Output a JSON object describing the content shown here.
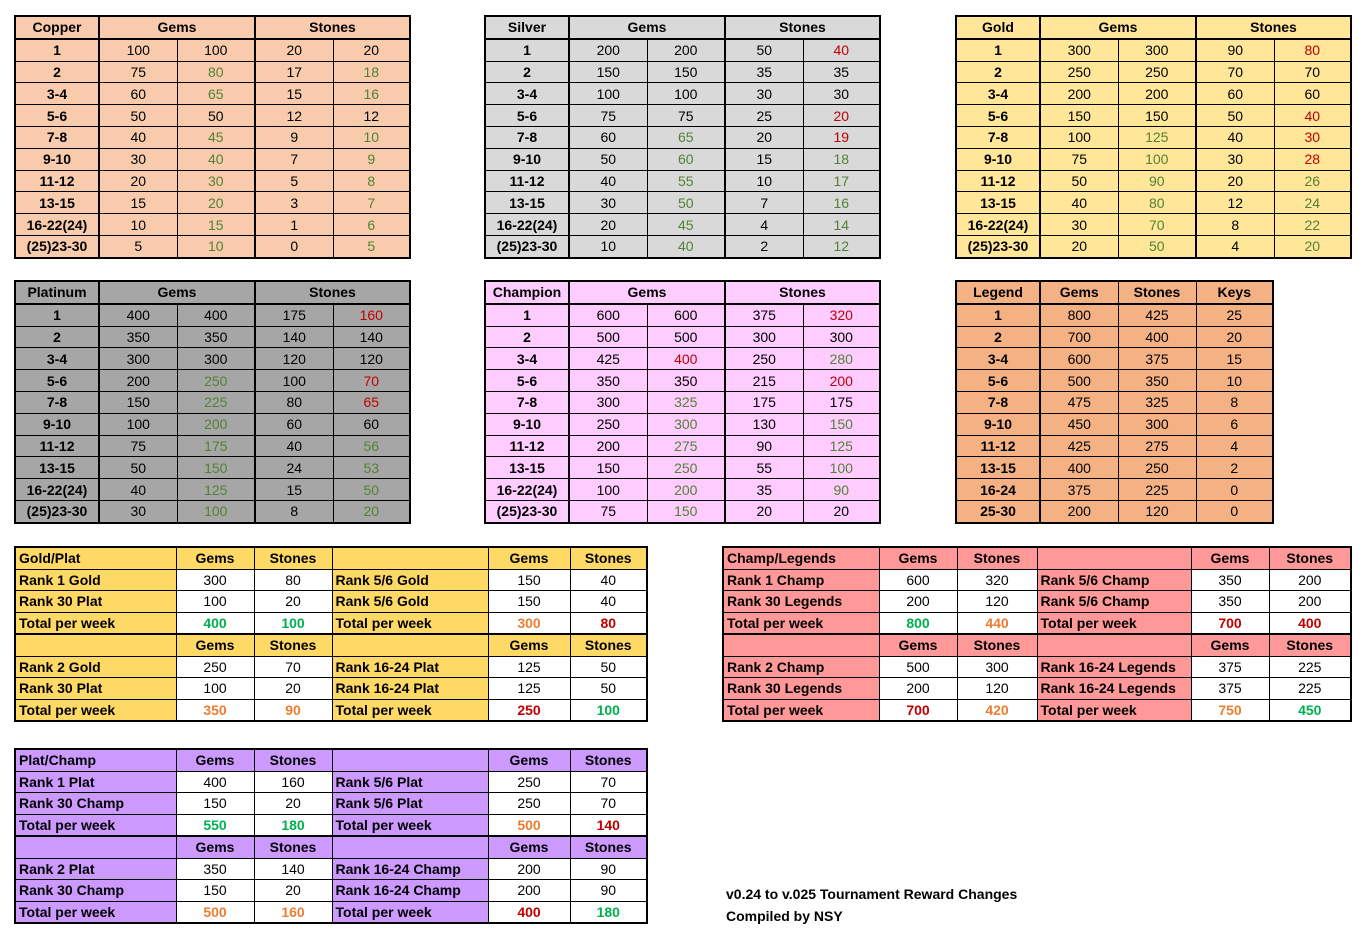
{
  "colors": {
    "copper": "#f8cbad",
    "silver": "#d9d9d9",
    "gold": "#ffe699",
    "platinum": "#a6a6a6",
    "champion": "#ffccff",
    "legend": "#f4b183",
    "gold_plat": "#ffd966",
    "champ_legends": "#ff9999",
    "plat_champ": "#cc99ff",
    "increase_text": "#538135",
    "decrease_text": "#c00000",
    "total_good": "#00b050",
    "total_mid": "#ed7d31",
    "total_bad": "#c00000"
  },
  "tiers": [
    {
      "title": "Copper",
      "gems_header": "Gems",
      "stones_header": "Stones",
      "rows": [
        {
          "rank": "1",
          "g_old": "100",
          "g_new": "100",
          "s_old": "20",
          "s_new": "20",
          "g_dir": "n",
          "s_dir": "n"
        },
        {
          "rank": "2",
          "g_old": "75",
          "g_new": "80",
          "s_old": "17",
          "s_new": "18",
          "g_dir": "g",
          "s_dir": "g"
        },
        {
          "rank": "3-4",
          "g_old": "60",
          "g_new": "65",
          "s_old": "15",
          "s_new": "16",
          "g_dir": "g",
          "s_dir": "g"
        },
        {
          "rank": "5-6",
          "g_old": "50",
          "g_new": "50",
          "s_old": "12",
          "s_new": "12",
          "g_dir": "n",
          "s_dir": "n"
        },
        {
          "rank": "7-8",
          "g_old": "40",
          "g_new": "45",
          "s_old": "9",
          "s_new": "10",
          "g_dir": "g",
          "s_dir": "g"
        },
        {
          "rank": "9-10",
          "g_old": "30",
          "g_new": "40",
          "s_old": "7",
          "s_new": "9",
          "g_dir": "g",
          "s_dir": "g"
        },
        {
          "rank": "11-12",
          "g_old": "20",
          "g_new": "30",
          "s_old": "5",
          "s_new": "8",
          "g_dir": "g",
          "s_dir": "g"
        },
        {
          "rank": "13-15",
          "g_old": "15",
          "g_new": "20",
          "s_old": "3",
          "s_new": "7",
          "g_dir": "g",
          "s_dir": "g"
        },
        {
          "rank": "16-22(24)",
          "g_old": "10",
          "g_new": "15",
          "s_old": "1",
          "s_new": "6",
          "g_dir": "g",
          "s_dir": "g"
        },
        {
          "rank": "(25)23-30",
          "g_old": "5",
          "g_new": "10",
          "s_old": "0",
          "s_new": "5",
          "g_dir": "g",
          "s_dir": "g"
        }
      ]
    },
    {
      "title": "Silver",
      "gems_header": "Gems",
      "stones_header": "Stones",
      "rows": [
        {
          "rank": "1",
          "g_old": "200",
          "g_new": "200",
          "s_old": "50",
          "s_new": "40",
          "g_dir": "n",
          "s_dir": "r"
        },
        {
          "rank": "2",
          "g_old": "150",
          "g_new": "150",
          "s_old": "35",
          "s_new": "35",
          "g_dir": "n",
          "s_dir": "n"
        },
        {
          "rank": "3-4",
          "g_old": "100",
          "g_new": "100",
          "s_old": "30",
          "s_new": "30",
          "g_dir": "n",
          "s_dir": "n"
        },
        {
          "rank": "5-6",
          "g_old": "75",
          "g_new": "75",
          "s_old": "25",
          "s_new": "20",
          "g_dir": "n",
          "s_dir": "r"
        },
        {
          "rank": "7-8",
          "g_old": "60",
          "g_new": "65",
          "s_old": "20",
          "s_new": "19",
          "g_dir": "g",
          "s_dir": "r"
        },
        {
          "rank": "9-10",
          "g_old": "50",
          "g_new": "60",
          "s_old": "15",
          "s_new": "18",
          "g_dir": "g",
          "s_dir": "g"
        },
        {
          "rank": "11-12",
          "g_old": "40",
          "g_new": "55",
          "s_old": "10",
          "s_new": "17",
          "g_dir": "g",
          "s_dir": "g"
        },
        {
          "rank": "13-15",
          "g_old": "30",
          "g_new": "50",
          "s_old": "7",
          "s_new": "16",
          "g_dir": "g",
          "s_dir": "g"
        },
        {
          "rank": "16-22(24)",
          "g_old": "20",
          "g_new": "45",
          "s_old": "4",
          "s_new": "14",
          "g_dir": "g",
          "s_dir": "g"
        },
        {
          "rank": "(25)23-30",
          "g_old": "10",
          "g_new": "40",
          "s_old": "2",
          "s_new": "12",
          "g_dir": "g",
          "s_dir": "g"
        }
      ]
    },
    {
      "title": "Gold",
      "gems_header": "Gems",
      "stones_header": "Stones",
      "rows": [
        {
          "rank": "1",
          "g_old": "300",
          "g_new": "300",
          "s_old": "90",
          "s_new": "80",
          "g_dir": "n",
          "s_dir": "r"
        },
        {
          "rank": "2",
          "g_old": "250",
          "g_new": "250",
          "s_old": "70",
          "s_new": "70",
          "g_dir": "n",
          "s_dir": "n"
        },
        {
          "rank": "3-4",
          "g_old": "200",
          "g_new": "200",
          "s_old": "60",
          "s_new": "60",
          "g_dir": "n",
          "s_dir": "n"
        },
        {
          "rank": "5-6",
          "g_old": "150",
          "g_new": "150",
          "s_old": "50",
          "s_new": "40",
          "g_dir": "n",
          "s_dir": "r"
        },
        {
          "rank": "7-8",
          "g_old": "100",
          "g_new": "125",
          "s_old": "40",
          "s_new": "30",
          "g_dir": "g",
          "s_dir": "r"
        },
        {
          "rank": "9-10",
          "g_old": "75",
          "g_new": "100",
          "s_old": "30",
          "s_new": "28",
          "g_dir": "g",
          "s_dir": "r"
        },
        {
          "rank": "11-12",
          "g_old": "50",
          "g_new": "90",
          "s_old": "20",
          "s_new": "26",
          "g_dir": "g",
          "s_dir": "g"
        },
        {
          "rank": "13-15",
          "g_old": "40",
          "g_new": "80",
          "s_old": "12",
          "s_new": "24",
          "g_dir": "g",
          "s_dir": "g"
        },
        {
          "rank": "16-22(24)",
          "g_old": "30",
          "g_new": "70",
          "s_old": "8",
          "s_new": "22",
          "g_dir": "g",
          "s_dir": "g"
        },
        {
          "rank": "(25)23-30",
          "g_old": "20",
          "g_new": "50",
          "s_old": "4",
          "s_new": "20",
          "g_dir": "g",
          "s_dir": "g"
        }
      ]
    },
    {
      "title": "Platinum",
      "gems_header": "Gems",
      "stones_header": "Stones",
      "rows": [
        {
          "rank": "1",
          "g_old": "400",
          "g_new": "400",
          "s_old": "175",
          "s_new": "160",
          "g_dir": "n",
          "s_dir": "r"
        },
        {
          "rank": "2",
          "g_old": "350",
          "g_new": "350",
          "s_old": "140",
          "s_new": "140",
          "g_dir": "n",
          "s_dir": "n"
        },
        {
          "rank": "3-4",
          "g_old": "300",
          "g_new": "300",
          "s_old": "120",
          "s_new": "120",
          "g_dir": "n",
          "s_dir": "n"
        },
        {
          "rank": "5-6",
          "g_old": "200",
          "g_new": "250",
          "s_old": "100",
          "s_new": "70",
          "g_dir": "g",
          "s_dir": "r"
        },
        {
          "rank": "7-8",
          "g_old": "150",
          "g_new": "225",
          "s_old": "80",
          "s_new": "65",
          "g_dir": "g",
          "s_dir": "r"
        },
        {
          "rank": "9-10",
          "g_old": "100",
          "g_new": "200",
          "s_old": "60",
          "s_new": "60",
          "g_dir": "g",
          "s_dir": "n"
        },
        {
          "rank": "11-12",
          "g_old": "75",
          "g_new": "175",
          "s_old": "40",
          "s_new": "56",
          "g_dir": "g",
          "s_dir": "g"
        },
        {
          "rank": "13-15",
          "g_old": "50",
          "g_new": "150",
          "s_old": "24",
          "s_new": "53",
          "g_dir": "g",
          "s_dir": "g"
        },
        {
          "rank": "16-22(24)",
          "g_old": "40",
          "g_new": "125",
          "s_old": "15",
          "s_new": "50",
          "g_dir": "g",
          "s_dir": "g"
        },
        {
          "rank": "(25)23-30",
          "g_old": "30",
          "g_new": "100",
          "s_old": "8",
          "s_new": "20",
          "g_dir": "g",
          "s_dir": "g"
        }
      ]
    },
    {
      "title": "Champion",
      "gems_header": "Gems",
      "stones_header": "Stones",
      "rows": [
        {
          "rank": "1",
          "g_old": "600",
          "g_new": "600",
          "s_old": "375",
          "s_new": "320",
          "g_dir": "n",
          "s_dir": "r"
        },
        {
          "rank": "2",
          "g_old": "500",
          "g_new": "500",
          "s_old": "300",
          "s_new": "300",
          "g_dir": "n",
          "s_dir": "n"
        },
        {
          "rank": "3-4",
          "g_old": "425",
          "g_new": "400",
          "s_old": "250",
          "s_new": "280",
          "g_dir": "r",
          "s_dir": "g"
        },
        {
          "rank": "5-6",
          "g_old": "350",
          "g_new": "350",
          "s_old": "215",
          "s_new": "200",
          "g_dir": "n",
          "s_dir": "r"
        },
        {
          "rank": "7-8",
          "g_old": "300",
          "g_new": "325",
          "s_old": "175",
          "s_new": "175",
          "g_dir": "g",
          "s_dir": "n"
        },
        {
          "rank": "9-10",
          "g_old": "250",
          "g_new": "300",
          "s_old": "130",
          "s_new": "150",
          "g_dir": "g",
          "s_dir": "g"
        },
        {
          "rank": "11-12",
          "g_old": "200",
          "g_new": "275",
          "s_old": "90",
          "s_new": "125",
          "g_dir": "g",
          "s_dir": "g"
        },
        {
          "rank": "13-15",
          "g_old": "150",
          "g_new": "250",
          "s_old": "55",
          "s_new": "100",
          "g_dir": "g",
          "s_dir": "g"
        },
        {
          "rank": "16-22(24)",
          "g_old": "100",
          "g_new": "200",
          "s_old": "35",
          "s_new": "90",
          "g_dir": "g",
          "s_dir": "g"
        },
        {
          "rank": "(25)23-30",
          "g_old": "75",
          "g_new": "150",
          "s_old": "20",
          "s_new": "20",
          "g_dir": "g",
          "s_dir": "n"
        }
      ]
    }
  ],
  "legend": {
    "headers": [
      "Legend",
      "Gems",
      "Stones",
      "Keys"
    ],
    "rows": [
      [
        "1",
        "800",
        "425",
        "25"
      ],
      [
        "2",
        "700",
        "400",
        "20"
      ],
      [
        "3-4",
        "600",
        "375",
        "15"
      ],
      [
        "5-6",
        "500",
        "350",
        "10"
      ],
      [
        "7-8",
        "475",
        "325",
        "8"
      ],
      [
        "9-10",
        "450",
        "300",
        "6"
      ],
      [
        "11-12",
        "425",
        "275",
        "4"
      ],
      [
        "13-15",
        "400",
        "250",
        "2"
      ],
      [
        "16-24",
        "375",
        "225",
        "0"
      ],
      [
        "25-30",
        "200",
        "120",
        "0"
      ]
    ]
  },
  "comparisons": [
    {
      "title": "Gold/Plat",
      "gems": "Gems",
      "stones": "Stones",
      "blocks": [
        {
          "left": {
            "rows": [
              [
                "Rank 1 Gold",
                "300",
                "80"
              ],
              [
                "Rank 30 Plat",
                "100",
                "20"
              ]
            ],
            "total": [
              "Total per week",
              "400",
              "100"
            ],
            "total_colors": [
              "gb",
              "gb"
            ]
          },
          "right": {
            "rows": [
              [
                "Rank 5/6 Gold",
                "150",
                "40"
              ],
              [
                "Rank 5/6 Gold",
                "150",
                "40"
              ]
            ],
            "total": [
              "Total per week",
              "300",
              "80"
            ],
            "total_colors": [
              "ob",
              "rb"
            ]
          }
        },
        {
          "left": {
            "rows": [
              [
                "Rank 2 Gold",
                "250",
                "70"
              ],
              [
                "Rank 30 Plat",
                "100",
                "20"
              ]
            ],
            "total": [
              "Total per week",
              "350",
              "90"
            ],
            "total_colors": [
              "ob",
              "ob"
            ]
          },
          "right": {
            "rows": [
              [
                "Rank 16-24 Plat",
                "125",
                "50"
              ],
              [
                "Rank 16-24 Plat",
                "125",
                "50"
              ]
            ],
            "total": [
              "Total per week",
              "250",
              "100"
            ],
            "total_colors": [
              "rb",
              "gb"
            ]
          }
        }
      ]
    },
    {
      "title": "Champ/Legends",
      "gems": "Gems",
      "stones": "Stones",
      "blocks": [
        {
          "left": {
            "rows": [
              [
                "Rank 1 Champ",
                "600",
                "320"
              ],
              [
                "Rank 30 Legends",
                "200",
                "120"
              ]
            ],
            "total": [
              "Total per week",
              "800",
              "440"
            ],
            "total_colors": [
              "gb",
              "ob"
            ]
          },
          "right": {
            "rows": [
              [
                "Rank 5/6 Champ",
                "350",
                "200"
              ],
              [
                "Rank 5/6 Champ",
                "350",
                "200"
              ]
            ],
            "total": [
              "Total per week",
              "700",
              "400"
            ],
            "total_colors": [
              "rb",
              "rb"
            ]
          }
        },
        {
          "left": {
            "rows": [
              [
                "Rank 2 Champ",
                "500",
                "300"
              ],
              [
                "Rank 30 Legends",
                "200",
                "120"
              ]
            ],
            "total": [
              "Total per week",
              "700",
              "420"
            ],
            "total_colors": [
              "rb",
              "ob"
            ]
          },
          "right": {
            "rows": [
              [
                "Rank 16-24 Legends",
                "375",
                "225"
              ],
              [
                "Rank 16-24 Legends",
                "375",
                "225"
              ]
            ],
            "total": [
              "Total per week",
              "750",
              "450"
            ],
            "total_colors": [
              "ob",
              "gb"
            ]
          }
        }
      ]
    },
    {
      "title": "Plat/Champ",
      "gems": "Gems",
      "stones": "Stones",
      "blocks": [
        {
          "left": {
            "rows": [
              [
                "Rank 1 Plat",
                "400",
                "160"
              ],
              [
                "Rank 30 Champ",
                "150",
                "20"
              ]
            ],
            "total": [
              "Total per week",
              "550",
              "180"
            ],
            "total_colors": [
              "gb",
              "gb"
            ]
          },
          "right": {
            "rows": [
              [
                "Rank 5/6 Plat",
                "250",
                "70"
              ],
              [
                "Rank 5/6 Plat",
                "250",
                "70"
              ]
            ],
            "total": [
              "Total per week",
              "500",
              "140"
            ],
            "total_colors": [
              "ob",
              "rb"
            ]
          }
        },
        {
          "left": {
            "rows": [
              [
                "Rank 2 Plat",
                "350",
                "140"
              ],
              [
                "Rank 30 Champ",
                "150",
                "20"
              ]
            ],
            "total": [
              "Total per week",
              "500",
              "160"
            ],
            "total_colors": [
              "ob",
              "ob"
            ]
          },
          "right": {
            "rows": [
              [
                "Rank 16-24 Champ",
                "200",
                "90"
              ],
              [
                "Rank 16-24 Champ",
                "200",
                "90"
              ]
            ],
            "total": [
              "Total per week",
              "400",
              "180"
            ],
            "total_colors": [
              "rb",
              "gb"
            ]
          }
        }
      ]
    }
  ],
  "notes": {
    "line1": "v0.24 to v.025 Tournament Reward Changes",
    "line2": "Compiled by NSY"
  }
}
